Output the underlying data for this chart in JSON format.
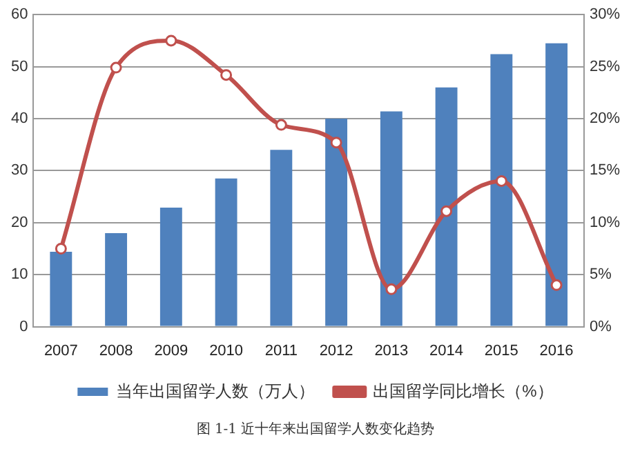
{
  "chart_data": {
    "type": "bar",
    "categories": [
      "2007",
      "2008",
      "2009",
      "2010",
      "2011",
      "2012",
      "2013",
      "2014",
      "2015",
      "2016"
    ],
    "series": [
      {
        "name": "当年出国留学人数（万人）",
        "color": "#4f81bd",
        "values": [
          14.4,
          18,
          22.9,
          28.5,
          34,
          40,
          41.4,
          46,
          52.4,
          54.5
        ]
      },
      {
        "name": "出国留学同比增长（%）",
        "type": "line",
        "axis": "y2",
        "color": "#c0504d",
        "values": [
          7.5,
          24.9,
          27.5,
          24.2,
          19.4,
          17.7,
          3.6,
          11.1,
          14,
          4
        ]
      }
    ],
    "ylim": [
      0,
      60
    ],
    "yticks": [
      0,
      10,
      20,
      30,
      40,
      50,
      60
    ],
    "y2lim": [
      0,
      30
    ],
    "y2ticks": [
      {
        "value": 0,
        "label": "0%"
      },
      {
        "value": 5,
        "label": "5%"
      },
      {
        "value": 10,
        "label": "10%"
      },
      {
        "value": 15,
        "label": "15%"
      },
      {
        "value": 20,
        "label": "20%"
      },
      {
        "value": 25,
        "label": "25%"
      },
      {
        "value": 30,
        "label": "30%"
      }
    ],
    "grid": "y",
    "legend": "bottom",
    "marker": "circle",
    "annotations": [
      "图 1-1 近十年来出国留学人数变化趋势"
    ]
  }
}
